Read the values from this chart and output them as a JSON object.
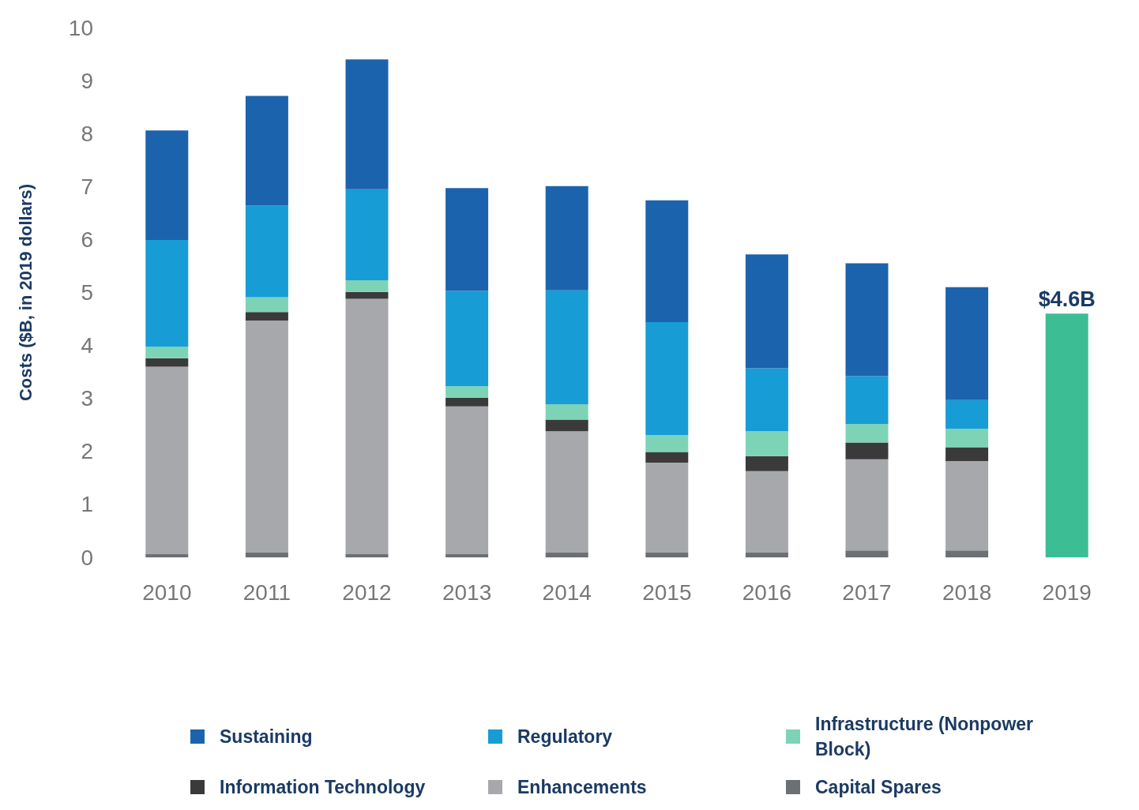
{
  "chart_data": {
    "type": "bar",
    "stacked": true,
    "ylabel": "Costs ($B, in 2019 dollars)",
    "categories": [
      "2010",
      "2011",
      "2012",
      "2013",
      "2014",
      "2015",
      "2016",
      "2017",
      "2018",
      "2019"
    ],
    "ylim": [
      0,
      10
    ],
    "yticks": [
      0,
      1,
      2,
      3,
      4,
      5,
      6,
      7,
      8,
      9,
      10
    ],
    "grid": false,
    "legend": "bottom",
    "series": [
      {
        "name": "Capital Spares",
        "color": "#6b7075",
        "values": [
          0.06,
          0.09,
          0.06,
          0.06,
          0.09,
          0.09,
          0.09,
          0.13,
          0.13,
          null
        ]
      },
      {
        "name": "Enhancements",
        "color": "#a7a8ab",
        "values": [
          3.54,
          4.38,
          4.82,
          2.79,
          2.29,
          1.7,
          1.54,
          1.72,
          1.69,
          null
        ]
      },
      {
        "name": "Information Technology",
        "color": "#3a3a3a",
        "values": [
          0.16,
          0.16,
          0.13,
          0.16,
          0.22,
          0.2,
          0.28,
          0.32,
          0.26,
          null
        ]
      },
      {
        "name": "Infrastructure (Nonpower Block)",
        "color": "#7dd3b6",
        "values": [
          0.22,
          0.28,
          0.22,
          0.22,
          0.29,
          0.32,
          0.47,
          0.35,
          0.35,
          null
        ]
      },
      {
        "name": "Regulatory",
        "color": "#179cd6",
        "values": [
          2.01,
          1.73,
          1.72,
          1.8,
          2.15,
          2.13,
          1.19,
          0.9,
          0.54,
          null
        ]
      },
      {
        "name": "Sustaining",
        "color": "#1c63ae",
        "values": [
          2.07,
          2.07,
          2.45,
          1.94,
          1.97,
          2.3,
          2.15,
          2.13,
          2.13,
          null
        ]
      },
      {
        "color": "#3dbd93",
        "values": [
          null,
          null,
          null,
          null,
          null,
          null,
          null,
          null,
          null,
          4.6
        ],
        "value_labels": [
          null,
          null,
          null,
          null,
          null,
          null,
          null,
          null,
          null,
          "$4.6B"
        ]
      }
    ]
  }
}
